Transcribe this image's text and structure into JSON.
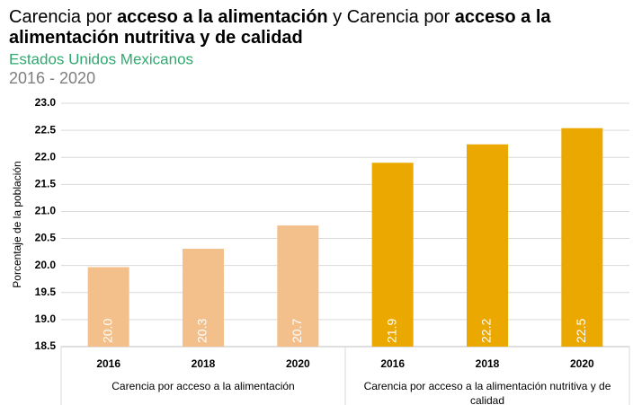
{
  "chart_data": {
    "type": "bar",
    "title": [
      [
        {
          "text": "Carencia por ",
          "bold": false
        },
        {
          "text": "acceso a la alimentación",
          "bold": true
        },
        {
          "text": " y Carencia por ",
          "bold": false
        },
        {
          "text": "acceso a la",
          "bold": true
        }
      ],
      [
        {
          "text": "alimentación nutritiva y de calidad",
          "bold": true
        }
      ]
    ],
    "subtitle": "Estados Unidos Mexicanos",
    "period": "2016 - 2020",
    "y_label": "Porcentaje de la población",
    "groups": [
      {
        "name": "Carencia por acceso a la alimentación",
        "color": "#f3c08b",
        "categories": [
          "2016",
          "2018",
          "2020"
        ],
        "values": [
          19.97,
          20.31,
          20.74
        ],
        "value_labels": [
          "20.0",
          "20.3",
          "20.7"
        ]
      },
      {
        "name": "Carencia por acceso a la alimentación nutritiva y de calidad",
        "color": "#eaa800",
        "categories": [
          "2016",
          "2018",
          "2020"
        ],
        "values": [
          21.9,
          22.24,
          22.54
        ],
        "value_labels": [
          "21.9",
          "22.2",
          "22.5"
        ]
      }
    ],
    "ylim": [
      18.5,
      23.0
    ],
    "yticks": [
      18.5,
      {
        "value": 19,
        "label": "19.0"
      },
      19.5,
      {
        "value": 20,
        "label": "20.0"
      },
      20.5,
      {
        "value": 21,
        "label": "21.0"
      },
      21.5,
      {
        "value": 22,
        "label": "22.0"
      },
      22.5,
      {
        "value": 23,
        "label": "23.0"
      }
    ],
    "grid": true
  }
}
